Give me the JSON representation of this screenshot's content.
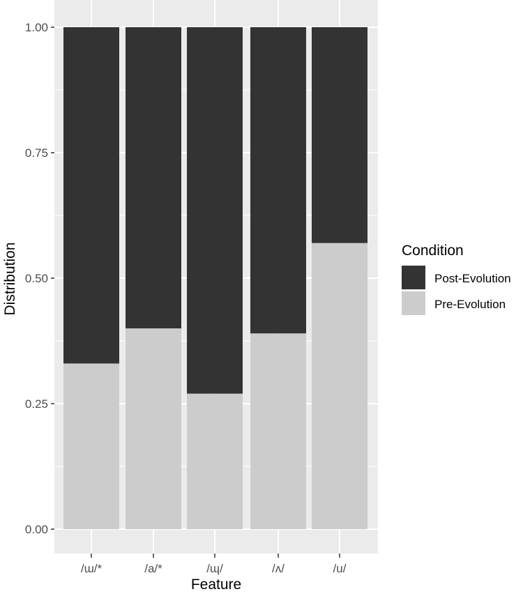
{
  "chart_data": {
    "type": "bar",
    "stacked": true,
    "xlabel": "Feature",
    "ylabel": "Distribution",
    "categories": [
      "/ɯ/*",
      "/a/*",
      "/ɰ/",
      "/ʌ/",
      "/u/"
    ],
    "series": [
      {
        "name": "Pre-Evolution",
        "color": "#cccccc",
        "values": [
          0.33,
          0.4,
          0.27,
          0.39,
          0.57
        ]
      },
      {
        "name": "Post-Evolution",
        "color": "#333333",
        "values": [
          0.67,
          0.6,
          0.73,
          0.61,
          0.43
        ]
      }
    ],
    "stack_order": [
      "Pre-Evolution",
      "Post-Evolution"
    ],
    "ylim": [
      0,
      1
    ],
    "yticks": [
      "0.00",
      "0.25",
      "0.50",
      "0.75",
      "1.00"
    ],
    "grid": true,
    "panel_background": "#ebebeb",
    "legend": {
      "title": "Condition",
      "position": "right",
      "entries": [
        "Post-Evolution",
        "Pre-Evolution"
      ]
    }
  }
}
